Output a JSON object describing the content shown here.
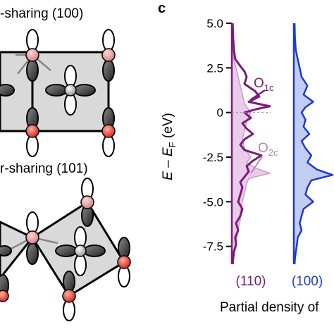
{
  "left_panel": {
    "title_top": "-sharing (100)",
    "title_bottom": "r-sharing (101)"
  },
  "chart_data": {
    "type": "line",
    "panel_letter": "c",
    "ylabel": "E – E_F (eV)",
    "ylabel_parts": {
      "E": "E",
      "dash": " – ",
      "E2": "E",
      "sub": "F",
      "unit": " (eV)"
    },
    "ylim": [
      -8.5,
      5.0
    ],
    "yticks": [
      "5.0",
      "2.5",
      "0",
      "-2.5",
      "-5.0",
      "-7.5"
    ],
    "ytick_values": [
      5.0,
      2.5,
      0,
      -2.5,
      -5.0,
      -7.5
    ],
    "xlabel": "Partial density of",
    "categories": [
      "(110)",
      "(100)"
    ],
    "annotations": [
      {
        "text": "O",
        "sub": "1c"
      },
      {
        "text": "O",
        "sub": "2c"
      }
    ],
    "colors": {
      "s110": "#7b1c7b",
      "s110_fill": "#e8c6e8",
      "s100": "#1c3ccc",
      "s100_fill": "#bcc8f0"
    },
    "series": [
      {
        "name": "O1c (110)",
        "E": [
          5.0,
          4.2,
          3.5,
          3.0,
          2.6,
          2.3,
          2.0,
          1.6,
          1.2,
          0.9,
          0.6,
          0.35,
          0.2,
          0.0,
          -0.3,
          -0.6,
          -0.9,
          -1.2,
          -1.5,
          -1.8,
          -2.1,
          -2.4,
          -2.7,
          -3.0,
          -3.3,
          -3.6,
          -3.9,
          -4.2,
          -4.6,
          -5.0,
          -5.4,
          -5.8,
          -6.2,
          -6.6,
          -7.0,
          -7.4,
          -7.8,
          -8.2,
          -8.5
        ],
        "dos": [
          0.02,
          0.03,
          0.05,
          0.08,
          0.2,
          0.3,
          0.35,
          0.3,
          0.55,
          0.65,
          0.4,
          0.9,
          0.6,
          0.3,
          0.45,
          0.25,
          0.35,
          0.5,
          0.3,
          0.2,
          0.3,
          0.7,
          0.5,
          0.35,
          0.4,
          0.3,
          0.2,
          0.25,
          0.2,
          0.15,
          0.25,
          0.2,
          0.1,
          0.15,
          0.08,
          0.1,
          0.05,
          0.03,
          0.02
        ]
      },
      {
        "name": "O2c (110)",
        "E": [
          5.0,
          4.0,
          3.0,
          2.5,
          2.0,
          1.5,
          1.0,
          0.5,
          0.0,
          -0.5,
          -1.0,
          -1.5,
          -2.0,
          -2.5,
          -2.8,
          -3.1,
          -3.4,
          -3.7,
          -4.0,
          -4.5,
          -5.0,
          -5.5,
          -6.0,
          -6.5,
          -7.0,
          -7.5,
          -8.0,
          -8.5
        ],
        "dos": [
          0.01,
          0.02,
          0.04,
          0.1,
          0.15,
          0.2,
          0.25,
          0.3,
          0.45,
          0.35,
          0.3,
          0.25,
          0.3,
          0.45,
          0.35,
          0.55,
          0.9,
          0.4,
          0.35,
          0.3,
          0.25,
          0.2,
          0.2,
          0.15,
          0.12,
          0.08,
          0.04,
          0.02
        ]
      },
      {
        "name": "O (100)",
        "E": [
          5.0,
          4.2,
          3.5,
          3.0,
          2.5,
          2.0,
          1.5,
          1.0,
          0.6,
          0.3,
          0.0,
          -0.4,
          -0.8,
          -1.2,
          -1.6,
          -2.0,
          -2.4,
          -2.8,
          -3.2,
          -3.5,
          -3.8,
          -4.2,
          -4.6,
          -5.0,
          -5.4,
          -5.8,
          -6.2,
          -6.6,
          -7.0,
          -7.4,
          -7.8,
          -8.2,
          -8.5
        ],
        "dos": [
          0.02,
          0.03,
          0.05,
          0.1,
          0.15,
          0.2,
          0.35,
          0.25,
          0.5,
          0.3,
          0.2,
          0.3,
          0.25,
          0.4,
          0.2,
          0.3,
          0.45,
          0.35,
          0.6,
          1.0,
          0.45,
          0.35,
          0.3,
          0.5,
          0.25,
          0.2,
          0.15,
          0.2,
          0.1,
          0.08,
          0.05,
          0.03,
          0.02
        ]
      }
    ]
  }
}
